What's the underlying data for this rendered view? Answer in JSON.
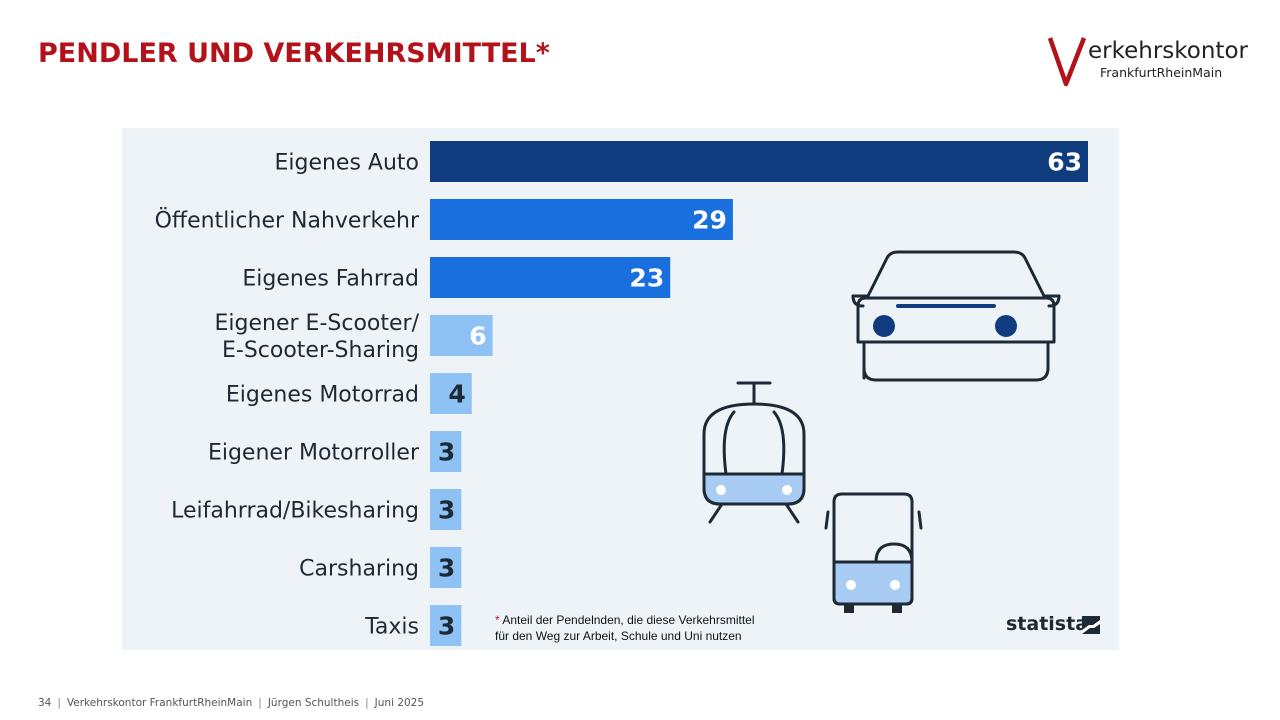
{
  "slide": {
    "title": "PENDLER UND VERKEHRSMITTEL*"
  },
  "logo": {
    "letter": "V",
    "main": "erkehrskontor",
    "sub": "FrankfurtRheinMain"
  },
  "chart_data": {
    "type": "bar",
    "orientation": "horizontal",
    "categories": [
      "Eigenes Auto",
      "Öffentlicher Nahverkehr",
      "Eigenes Fahrrad",
      "Eigener E-Scooter/\nE-Scooter-Sharing",
      "Eigenes Motorrad",
      "Eigener Motorroller",
      "Leifahrrad/Bikesharing",
      "Carsharing",
      "Taxis"
    ],
    "values": [
      63,
      29,
      23,
      6,
      4,
      3,
      3,
      3,
      3
    ],
    "xlim": [
      0,
      63
    ],
    "grid": false,
    "colors": [
      "#0f3c7e",
      "#1a6fde",
      "#1a6fde",
      "#8ec2f4",
      "#8ec2f4",
      "#8ec2f4",
      "#8ec2f4",
      "#8ec2f4",
      "#8ec2f4"
    ],
    "label_colors": [
      "#ffffff",
      "#ffffff",
      "#ffffff",
      "#ffffff",
      "#1d2a36",
      "#1d2a36",
      "#1d2a36",
      "#1d2a36",
      "#1d2a36"
    ]
  },
  "illustrations": [
    "car-icon",
    "tram-icon",
    "bus-icon"
  ],
  "footnote": {
    "star": "*",
    "line1": " Anteil der Pendelnden, die diese Verkehrsmittel",
    "line2": "für den Weg zur Arbeit, Schule und Uni nutzen"
  },
  "source": "statista",
  "footer": {
    "page": "34",
    "org": "Verkehrskontor FrankfurtRheinMain",
    "author": "Jürgen Schultheis",
    "date": "Juni 2025"
  },
  "colors": {
    "title_red": "#b3121a",
    "panel_bg": "#eef3f7",
    "icon_stroke": "#1d2a36",
    "icon_fill": "#a9ccf5",
    "icon_dark": "#0f3c7e"
  }
}
